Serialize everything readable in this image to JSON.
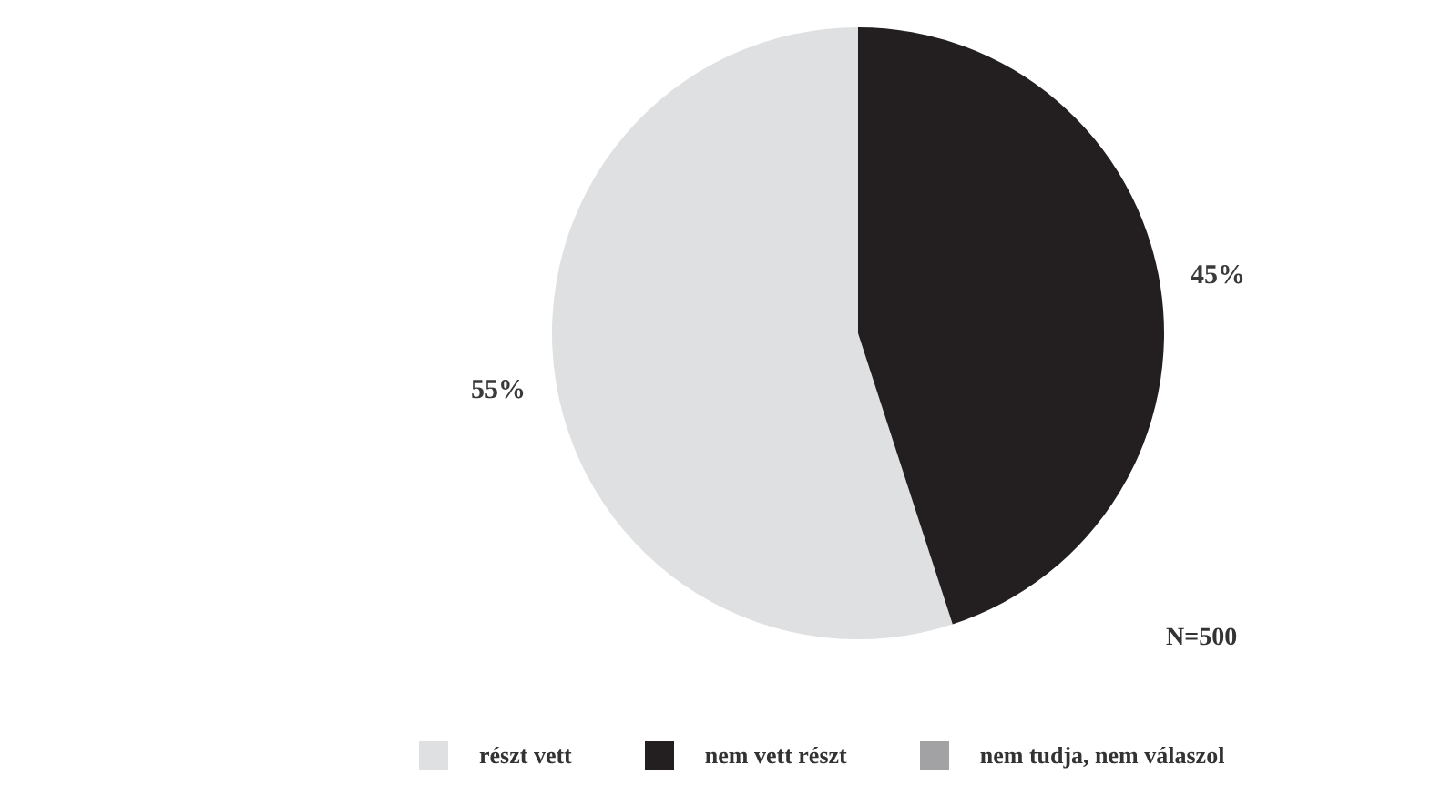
{
  "chart_data": {
    "type": "pie",
    "categories": [
      "részt vett",
      "nem vett részt",
      "nem tudja, nem válaszol"
    ],
    "values": [
      55,
      45,
      0
    ],
    "colors": [
      "#dfe0e2",
      "#231f20",
      "#a2a2a4"
    ],
    "value_labels": [
      "55%",
      "45%",
      null
    ],
    "legend": "bottom",
    "annotations": [
      "N=500"
    ]
  }
}
